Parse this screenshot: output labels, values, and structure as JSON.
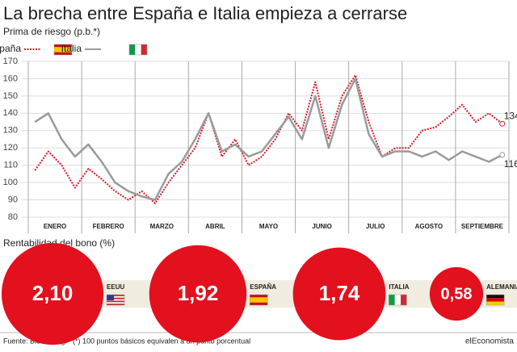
{
  "chart_data": [
    {
      "type": "line",
      "title": "La brecha entre España e Italia empieza a cerrarse",
      "subtitle": "Prima de riesgo (p.b.*)",
      "categories": [
        null,
        "ENERO",
        null,
        null,
        null,
        "FEBRERO",
        null,
        null,
        null,
        "MARZO",
        null,
        null,
        null,
        "ABRIL",
        null,
        null,
        null,
        "MAYO",
        null,
        null,
        null,
        "JUNIO",
        null,
        null,
        null,
        "JULIO",
        null,
        null,
        null,
        "AGOSTO",
        null,
        null,
        null,
        "SEPTIEMBRE",
        null,
        null
      ],
      "series": [
        {
          "name": "España",
          "color": "#d7192b",
          "values": [
            107,
            118,
            110,
            97,
            108,
            102,
            95,
            90,
            95,
            88,
            100,
            110,
            120,
            140,
            115,
            125,
            110,
            115,
            125,
            140,
            130,
            158,
            125,
            150,
            162,
            135,
            115,
            120,
            120,
            130,
            132,
            138,
            145,
            135,
            140,
            134
          ]
        },
        {
          "name": "Italia",
          "color": "#9a9a9a",
          "values": [
            135,
            140,
            125,
            115,
            122,
            112,
            100,
            95,
            92,
            90,
            105,
            112,
            125,
            140,
            118,
            122,
            115,
            118,
            128,
            138,
            125,
            150,
            120,
            145,
            160,
            128,
            115,
            118,
            118,
            115,
            118,
            113,
            118,
            115,
            112,
            116
          ]
        }
      ],
      "ylim": [
        80,
        170
      ],
      "yticks": [
        80,
        90,
        100,
        110,
        120,
        130,
        140,
        150,
        160,
        170
      ],
      "grid": true
    },
    {
      "type": "bubble",
      "title": "Rentabilidad del bono (%)",
      "color": "#e3101e",
      "categories": [
        "EEUU",
        "ESPAÑA",
        "ITALIA",
        "ALEMANIA"
      ],
      "values": [
        2.1,
        1.92,
        1.74,
        0.58
      ],
      "value_labels": [
        "2,10",
        "1,92",
        "1,74",
        "0,58"
      ]
    }
  ],
  "footer": {
    "source": "Fuente: Bloomberg.",
    "note": "(*) 100 puntos básicos equivalen a un punto porcentual",
    "brand": "elEconomista"
  }
}
